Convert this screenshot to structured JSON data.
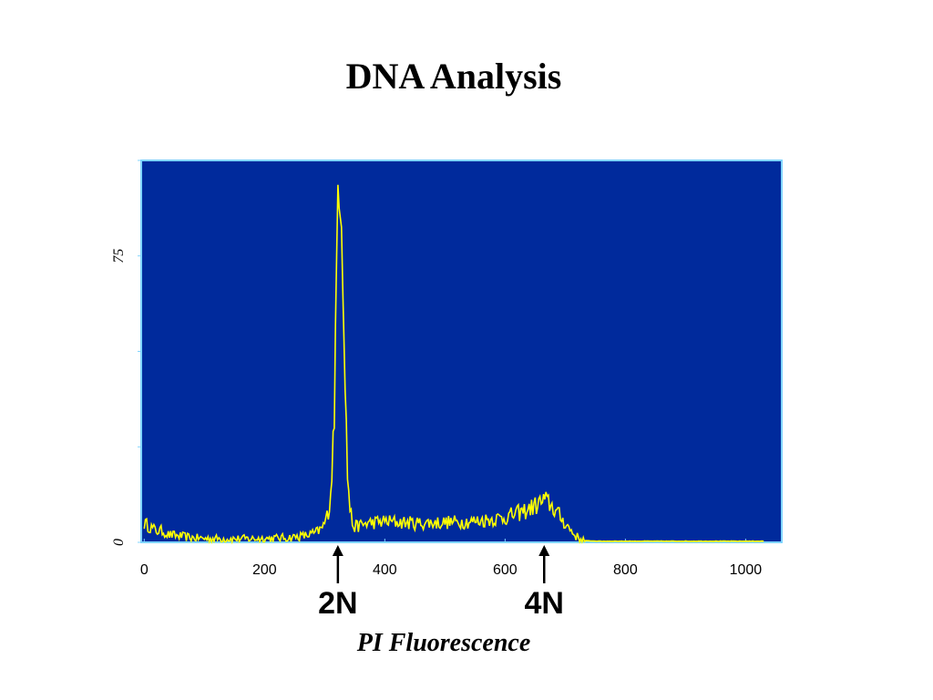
{
  "chart_data": {
    "type": "line",
    "title": "DNA Analysis",
    "xlabel": "PI Fluorescence",
    "ylabel": "",
    "xlim": [
      -5,
      1060
    ],
    "ylim": [
      0,
      100
    ],
    "x_ticks": [
      0,
      200,
      400,
      600,
      800,
      1000
    ],
    "y_ticks": [
      0,
      25,
      50,
      75,
      100
    ],
    "y_tick_labels_visible": [
      "0",
      "75"
    ],
    "grid": false,
    "plot_background": "#002a9c",
    "line_color": "#ffff00",
    "frame_color": "#7fd4ff",
    "markers": [
      {
        "label": "2N",
        "x": 322
      },
      {
        "label": "4N",
        "x": 665
      }
    ],
    "series": [
      {
        "points": [
          [
            0,
            5
          ],
          [
            10,
            4
          ],
          [
            20,
            3
          ],
          [
            30,
            3
          ],
          [
            40,
            2
          ],
          [
            60,
            1.6
          ],
          [
            80,
            1.2
          ],
          [
            100,
            1
          ],
          [
            150,
            0.9
          ],
          [
            200,
            1
          ],
          [
            240,
            1.2
          ],
          [
            270,
            1.8
          ],
          [
            285,
            2.5
          ],
          [
            295,
            3.5
          ],
          [
            303,
            6
          ],
          [
            308,
            10
          ],
          [
            312,
            18
          ],
          [
            316,
            35
          ],
          [
            319,
            60
          ],
          [
            321,
            88
          ],
          [
            323,
            98
          ],
          [
            325,
            87
          ],
          [
            327,
            92
          ],
          [
            329,
            78
          ],
          [
            332,
            58
          ],
          [
            335,
            35
          ],
          [
            338,
            18
          ],
          [
            342,
            9
          ],
          [
            346,
            5
          ],
          [
            350,
            4
          ],
          [
            370,
            5
          ],
          [
            400,
            5.5
          ],
          [
            450,
            5
          ],
          [
            500,
            5.2
          ],
          [
            550,
            5.5
          ],
          [
            600,
            6.5
          ],
          [
            630,
            8
          ],
          [
            650,
            9.5
          ],
          [
            665,
            11
          ],
          [
            675,
            10
          ],
          [
            690,
            7
          ],
          [
            705,
            4
          ],
          [
            715,
            2
          ],
          [
            725,
            0.8
          ],
          [
            735,
            0.4
          ],
          [
            760,
            0.3
          ],
          [
            850,
            0.3
          ],
          [
            950,
            0.3
          ],
          [
            1030,
            0.3
          ]
        ]
      }
    ]
  }
}
